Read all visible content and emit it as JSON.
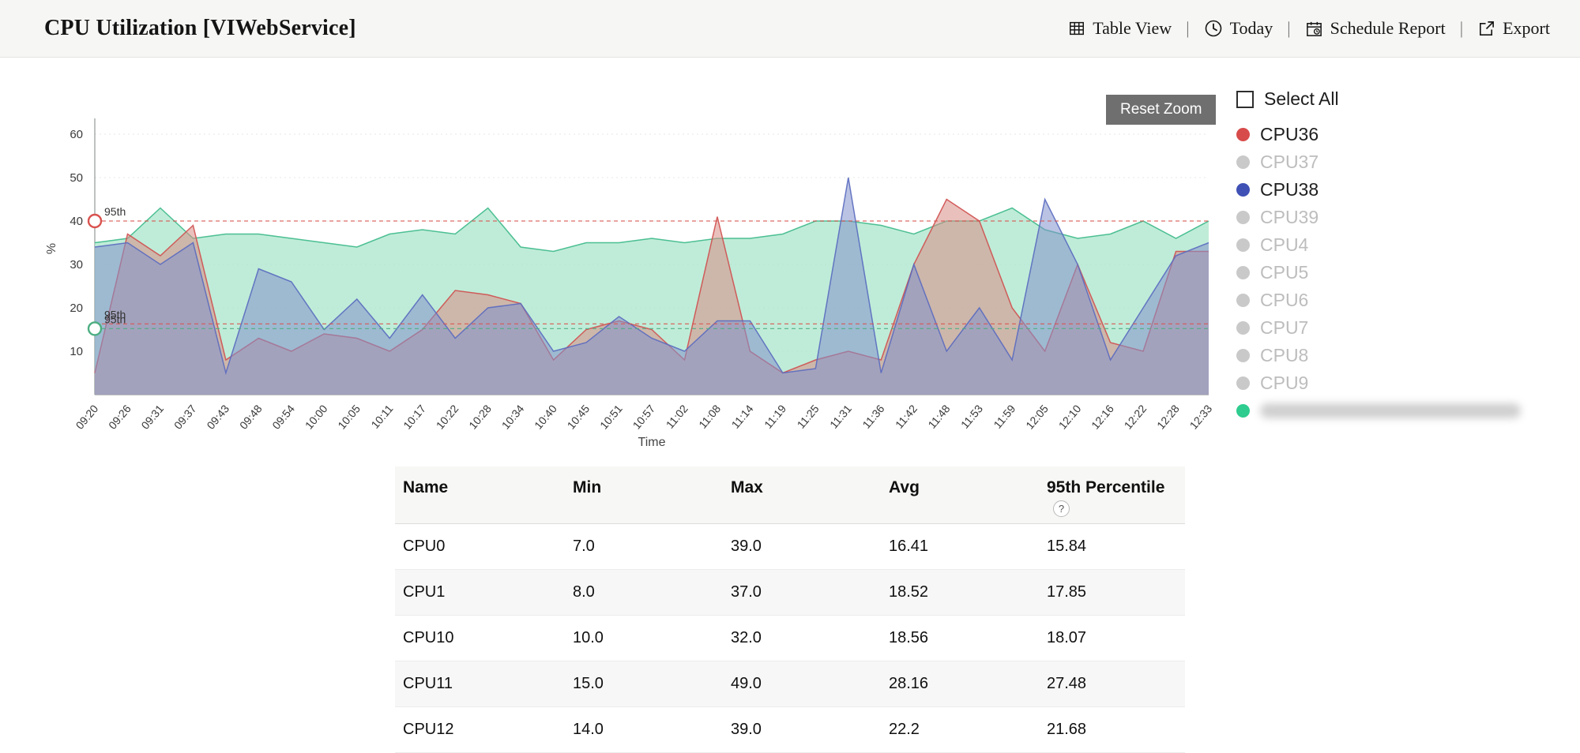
{
  "header": {
    "title": "CPU Utilization [VIWebService]",
    "separator": "|",
    "actions": [
      {
        "label": "Table View",
        "icon": "table-view-icon"
      },
      {
        "label": "Today",
        "icon": "today-clock-icon"
      },
      {
        "label": "Schedule Report",
        "icon": "schedule-report-icon"
      },
      {
        "label": "Export",
        "icon": "export-icon"
      }
    ]
  },
  "chart": {
    "reset_zoom_label": "Reset Zoom"
  },
  "chart_data": {
    "type": "area",
    "title": "",
    "xlabel": "Time",
    "ylabel": "%",
    "ylim": [
      0,
      66
    ],
    "yticks": [
      10,
      20,
      30,
      40,
      50,
      60
    ],
    "grid": true,
    "legend_position": "right",
    "x": [
      "09:20",
      "09:26",
      "09:31",
      "09:37",
      "09:43",
      "09:48",
      "09:54",
      "10:00",
      "10:05",
      "10:11",
      "10:17",
      "10:22",
      "10:28",
      "10:34",
      "10:40",
      "10:45",
      "10:51",
      "10:57",
      "11:02",
      "11:08",
      "11:14",
      "11:19",
      "11:25",
      "11:31",
      "11:36",
      "11:42",
      "11:48",
      "11:53",
      "11:59",
      "12:05",
      "12:10",
      "12:16",
      "12:22",
      "12:28",
      "12:33"
    ],
    "series": [
      {
        "name": "",
        "redacted": true,
        "color": "#3cb98a",
        "fill": "#a9e6cb",
        "fill_opacity": 0.75,
        "values": [
          35,
          36,
          43,
          36,
          37,
          37,
          36,
          35,
          34,
          37,
          38,
          37,
          43,
          34,
          33,
          35,
          35,
          36,
          35,
          36,
          36,
          37,
          40,
          40,
          39,
          37,
          40,
          40,
          43,
          38,
          36,
          37,
          40,
          36,
          40
        ]
      },
      {
        "name": "CPU36",
        "color": "#cf4f4f",
        "fill": "#d98c85",
        "fill_opacity": 0.55,
        "values": [
          5,
          37,
          32,
          39,
          8,
          13,
          10,
          14,
          13,
          10,
          15,
          24,
          23,
          21,
          8,
          15,
          17,
          15,
          8,
          41,
          10,
          5,
          8,
          10,
          8,
          30,
          45,
          40,
          20,
          10,
          30,
          12,
          10,
          33,
          33
        ]
      },
      {
        "name": "CPU38",
        "color": "#5a6abf",
        "fill": "#8291cc",
        "fill_opacity": 0.55,
        "values": [
          34,
          35,
          30,
          35,
          5,
          29,
          26,
          15,
          22,
          13,
          23,
          13,
          20,
          21,
          10,
          12,
          18,
          13,
          10,
          17,
          17,
          5,
          6,
          50,
          5,
          30,
          10,
          20,
          8,
          45,
          30,
          8,
          20,
          32,
          35
        ]
      }
    ],
    "percentile_markers": [
      {
        "label": "95th",
        "value": 40,
        "color": "#d9534f",
        "marker": true
      },
      {
        "label": "95th",
        "value": 16.3,
        "color": "#d9534f",
        "marker": false
      },
      {
        "label": "95th",
        "value": 15.2,
        "color": "#4cae82",
        "marker": true
      }
    ]
  },
  "legend": {
    "select_all_label": "Select All",
    "select_all_checked": false,
    "items": [
      {
        "label": "CPU36",
        "color": "#d84b4b",
        "active": true
      },
      {
        "label": "CPU37",
        "color": "#c9c9c9",
        "active": false
      },
      {
        "label": "CPU38",
        "color": "#3f51b5",
        "active": true
      },
      {
        "label": "CPU39",
        "color": "#c9c9c9",
        "active": false
      },
      {
        "label": "CPU4",
        "color": "#c9c9c9",
        "active": false
      },
      {
        "label": "CPU5",
        "color": "#c9c9c9",
        "active": false
      },
      {
        "label": "CPU6",
        "color": "#c9c9c9",
        "active": false
      },
      {
        "label": "CPU7",
        "color": "#c9c9c9",
        "active": false
      },
      {
        "label": "CPU8",
        "color": "#c9c9c9",
        "active": false
      },
      {
        "label": "CPU9",
        "color": "#c9c9c9",
        "active": false
      },
      {
        "label": "",
        "redacted": true,
        "color": "#2ecc8f",
        "active": true
      }
    ]
  },
  "table": {
    "columns": [
      "Name",
      "Min",
      "Max",
      "Avg",
      "95th Percentile"
    ],
    "help_icon": "?",
    "help_column_index": 4,
    "rows": [
      [
        "CPU0",
        "7.0",
        "39.0",
        "16.41",
        "15.84"
      ],
      [
        "CPU1",
        "8.0",
        "37.0",
        "18.52",
        "17.85"
      ],
      [
        "CPU10",
        "10.0",
        "32.0",
        "18.56",
        "18.07"
      ],
      [
        "CPU11",
        "15.0",
        "49.0",
        "28.16",
        "27.48"
      ],
      [
        "CPU12",
        "14.0",
        "39.0",
        "22.2",
        "21.68"
      ]
    ]
  }
}
